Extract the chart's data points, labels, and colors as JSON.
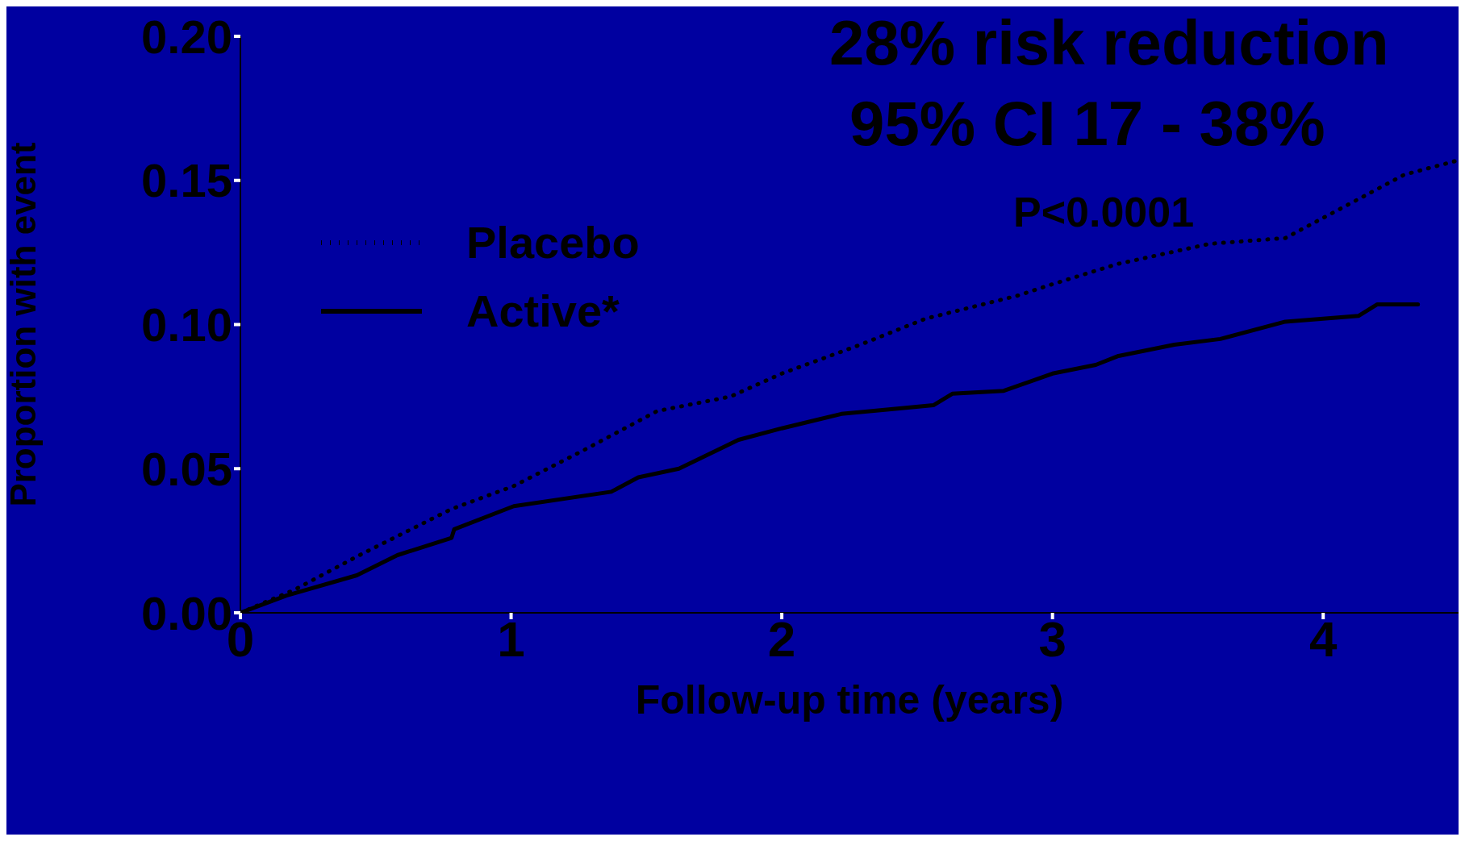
{
  "chart_data": {
    "type": "line",
    "xlabel": "Follow-up time (years)",
    "ylabel": "Proportion with event",
    "annotations": [
      "28% risk reduction",
      "95% CI 17 - 38%",
      "P<0.0001"
    ],
    "xlim": [
      0,
      4.5
    ],
    "xticks": [
      0,
      1,
      2,
      3,
      4
    ],
    "ylim": [
      0,
      0.2
    ],
    "yticks": [
      {
        "value": 0,
        "label": "0.00"
      },
      {
        "value": 0.05,
        "label": "0.05"
      },
      {
        "value": 0.1,
        "label": "0.10"
      },
      {
        "value": 0.15,
        "label": "0.15"
      },
      {
        "value": 0.2,
        "label": "0.20"
      }
    ],
    "grid": false,
    "legend": "top left",
    "marker": "none",
    "series": [
      {
        "name": "Placebo",
        "color": "#000000",
        "line_style": "dotted",
        "x": [
          0,
          0.2,
          0.44,
          0.78,
          1.01,
          1.26,
          1.54,
          1.81,
          2.0,
          2.29,
          2.53,
          2.87,
          3.0,
          3.24,
          3.58,
          3.86,
          4.0,
          4.2,
          4.3,
          4.5
        ],
        "values": [
          0,
          0.008,
          0.02,
          0.036,
          0.044,
          0.056,
          0.07,
          0.075,
          0.083,
          0.093,
          0.102,
          0.11,
          0.114,
          0.121,
          0.128,
          0.13,
          0.137,
          0.147,
          0.152,
          0.157
        ]
      },
      {
        "name": "Active*",
        "color": "#000000",
        "line_style": "solid",
        "x": [
          0,
          0.17,
          0.43,
          0.58,
          0.78,
          0.79,
          1.01,
          1.37,
          1.47,
          1.62,
          1.84,
          2.0,
          2.22,
          2.56,
          2.63,
          2.82,
          3.0,
          3.16,
          3.24,
          3.45,
          3.62,
          3.86,
          4.13,
          4.2,
          4.35
        ],
        "values": [
          0,
          0.006,
          0.013,
          0.02,
          0.026,
          0.029,
          0.037,
          0.042,
          0.047,
          0.05,
          0.06,
          0.064,
          0.069,
          0.072,
          0.076,
          0.077,
          0.083,
          0.086,
          0.089,
          0.093,
          0.095,
          0.101,
          0.103,
          0.107,
          0.107
        ]
      }
    ]
  }
}
